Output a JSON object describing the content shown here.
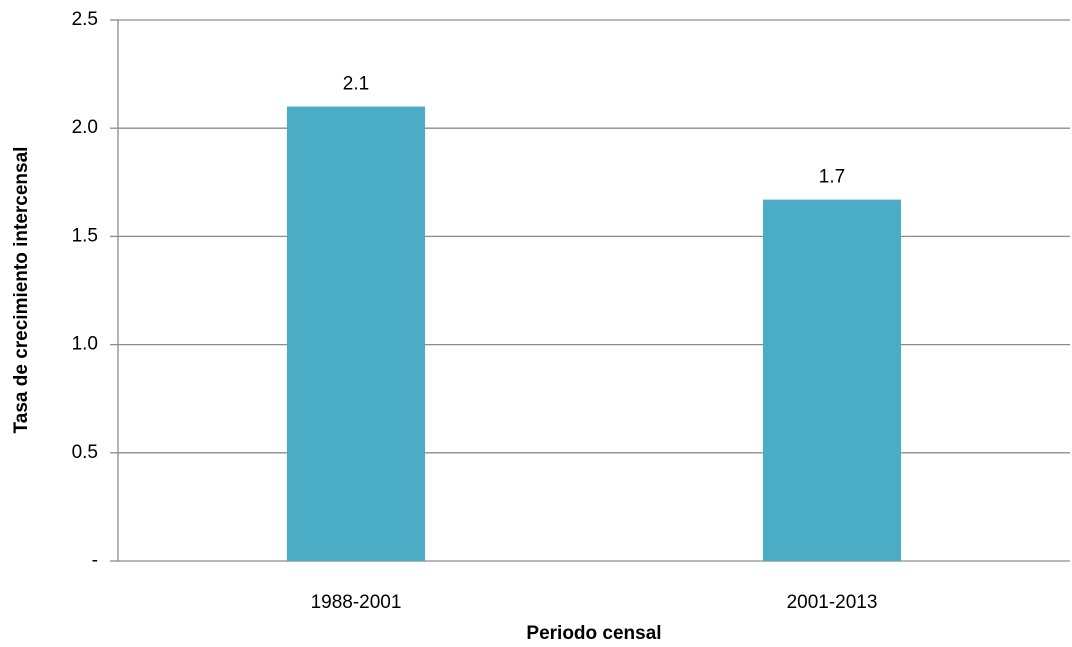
{
  "chart_data": {
    "type": "bar",
    "x_label": "Periodo censal",
    "y_label": "Tasa de crecimiento  intercensal",
    "categories": [
      "1988-2001",
      "2001-2013"
    ],
    "values": [
      2.1,
      1.67
    ],
    "value_labels": [
      "2.1",
      "1.7"
    ],
    "color": "#4bacc6",
    "ylim": [
      0,
      2.5
    ],
    "yticks": [
      {
        "value": 0,
        "label": "-"
      },
      0.5,
      {
        "value": 1,
        "label": "1.0"
      },
      1.5,
      {
        "value": 2,
        "label": "2.0"
      },
      2.5
    ],
    "grid": true
  }
}
